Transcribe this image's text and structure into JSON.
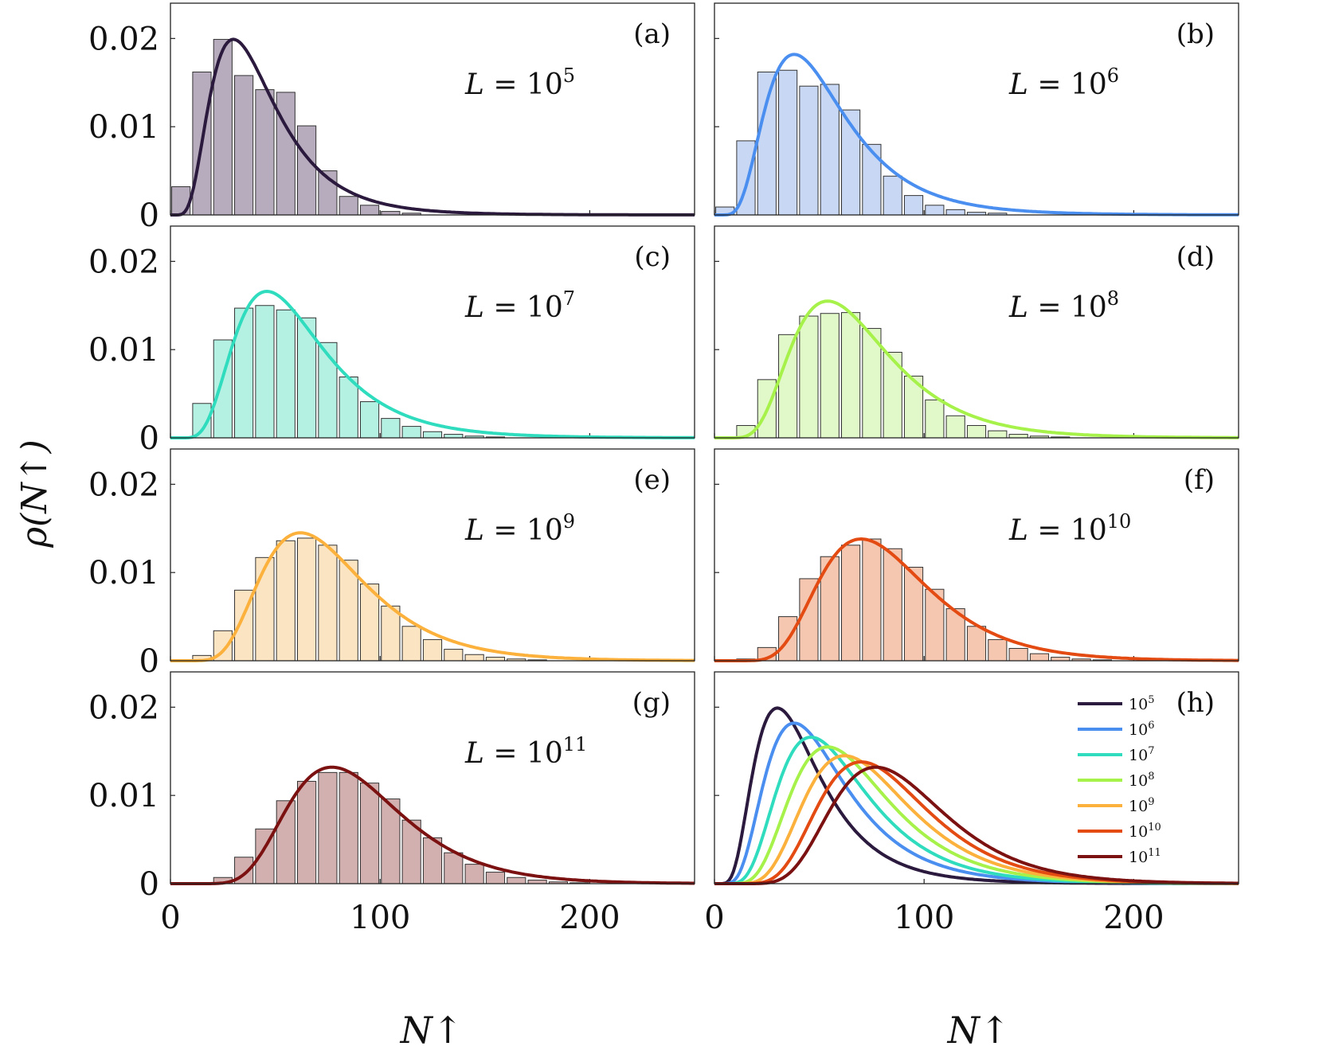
{
  "chart_data": {
    "type": "bar",
    "ylabel": "ρ(N↑)",
    "xlabel": "N↑",
    "xlim": [
      0,
      250
    ],
    "ylim": [
      0,
      0.024
    ],
    "x_ticks": [
      "0",
      "100",
      "200"
    ],
    "y_ticks": [
      "0",
      "0.01",
      "0.02"
    ],
    "bin_width": 10,
    "bin_centers": [
      5,
      15,
      25,
      35,
      45,
      55,
      65,
      75,
      85,
      95,
      105,
      115,
      125,
      135,
      145,
      155,
      165,
      175,
      185,
      195
    ],
    "panels": [
      {
        "tag": "(a)",
        "L_base": "10",
        "L_exp": "5",
        "color": "#2b1a3d",
        "bar_color": "#b7acbd",
        "curve_peak_x": 30,
        "curve_peak_y": 0.0199,
        "curve_sigma": 0.52,
        "bars": [
          0.0032,
          0.0162,
          0.0199,
          0.0158,
          0.0142,
          0.0139,
          0.0101,
          0.005,
          0.0021,
          0.0011,
          0.0004,
          0.0002,
          0,
          0,
          0,
          0,
          0,
          0,
          0,
          0
        ]
      },
      {
        "tag": "(b)",
        "L_base": "10",
        "L_exp": "6",
        "color": "#4a8ef0",
        "bar_color": "#c8d8f4",
        "curve_peak_x": 38,
        "curve_peak_y": 0.0182,
        "curve_sigma": 0.5,
        "bars": [
          0.0009,
          0.0084,
          0.0162,
          0.0164,
          0.0146,
          0.0148,
          0.0119,
          0.008,
          0.0044,
          0.0022,
          0.0011,
          0.0006,
          0.0003,
          0.0002,
          0,
          0,
          0,
          0,
          0,
          0
        ]
      },
      {
        "tag": "(c)",
        "L_base": "10",
        "L_exp": "7",
        "color": "#2fdcbe",
        "bar_color": "#b5f1e3",
        "curve_peak_x": 46,
        "curve_peak_y": 0.0166,
        "curve_sigma": 0.46,
        "bars": [
          0.0001,
          0.0039,
          0.0111,
          0.0147,
          0.015,
          0.0145,
          0.0136,
          0.0108,
          0.0069,
          0.0041,
          0.0022,
          0.0013,
          0.0007,
          0.0004,
          0.0002,
          0.0001,
          0,
          0,
          0,
          0
        ]
      },
      {
        "tag": "(d)",
        "L_base": "10",
        "L_exp": "8",
        "color": "#a6f24a",
        "bar_color": "#e1f8c8",
        "curve_peak_x": 54,
        "curve_peak_y": 0.0155,
        "curve_sigma": 0.43,
        "bars": [
          0.0001,
          0.0014,
          0.0066,
          0.0117,
          0.0138,
          0.0141,
          0.0142,
          0.0124,
          0.0097,
          0.007,
          0.0043,
          0.0025,
          0.0014,
          0.0008,
          0.0004,
          0.0002,
          0.0001,
          0,
          0,
          0
        ]
      },
      {
        "tag": "(e)",
        "L_base": "10",
        "L_exp": "9",
        "color": "#fbb13c",
        "bar_color": "#fbe4c1",
        "curve_peak_x": 62,
        "curve_peak_y": 0.0145,
        "curve_sigma": 0.4,
        "bars": [
          0,
          0.0006,
          0.0034,
          0.008,
          0.0117,
          0.0136,
          0.0139,
          0.0131,
          0.0114,
          0.0087,
          0.0062,
          0.0039,
          0.0024,
          0.0013,
          0.0007,
          0.0004,
          0.0002,
          0.0001,
          0,
          0
        ]
      },
      {
        "tag": "(f)",
        "L_base": "10",
        "L_exp": "10",
        "color": "#e34b12",
        "bar_color": "#f5c6b0",
        "curve_peak_x": 70,
        "curve_peak_y": 0.0138,
        "curve_sigma": 0.37,
        "bars": [
          0,
          0.0002,
          0.0015,
          0.005,
          0.0093,
          0.0118,
          0.0131,
          0.0138,
          0.0127,
          0.0106,
          0.0081,
          0.0059,
          0.0039,
          0.0024,
          0.0014,
          0.0008,
          0.0004,
          0.0002,
          0.0001,
          0
        ]
      },
      {
        "tag": "(g)",
        "L_base": "10",
        "L_exp": "11",
        "color": "#7c1111",
        "bar_color": "#d3b0b0",
        "curve_peak_x": 77,
        "curve_peak_y": 0.0132,
        "curve_sigma": 0.35,
        "bars": [
          0,
          0,
          0.0007,
          0.003,
          0.0062,
          0.0094,
          0.0116,
          0.0126,
          0.0126,
          0.0114,
          0.0096,
          0.0072,
          0.0052,
          0.0035,
          0.0022,
          0.0013,
          0.0007,
          0.0004,
          0.0002,
          0.0001
        ]
      }
    ],
    "overlay_panel": {
      "tag": "(h)",
      "legend_position": "top-right",
      "legend": [
        {
          "base": "10",
          "exp": "5",
          "color": "#2b1a3d"
        },
        {
          "base": "10",
          "exp": "6",
          "color": "#4a8ef0"
        },
        {
          "base": "10",
          "exp": "7",
          "color": "#2fdcbe"
        },
        {
          "base": "10",
          "exp": "8",
          "color": "#a6f24a"
        },
        {
          "base": "10",
          "exp": "9",
          "color": "#fbb13c"
        },
        {
          "base": "10",
          "exp": "10",
          "color": "#e34b12"
        },
        {
          "base": "10",
          "exp": "11",
          "color": "#7c1111"
        }
      ]
    }
  }
}
